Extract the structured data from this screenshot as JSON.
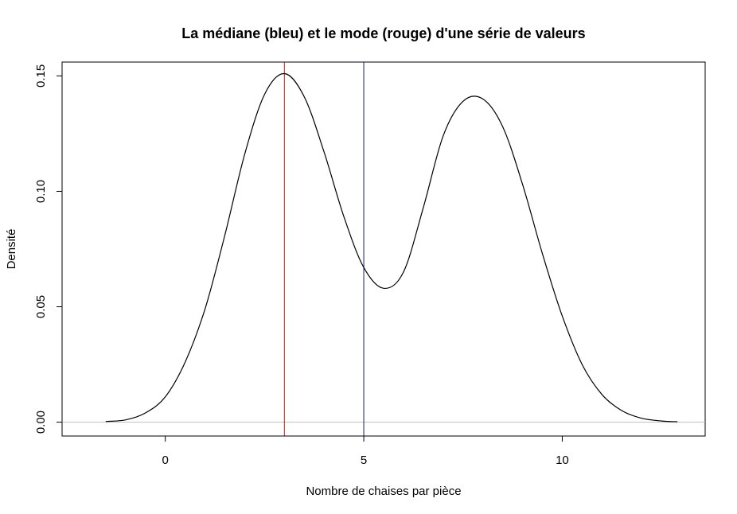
{
  "chart_data": {
    "type": "line",
    "title": "La médiane (bleu) et le mode (rouge) d'une série de valeurs",
    "xlabel": "Nombre de chaises par pièce",
    "ylabel": "Densité",
    "xlim": [
      -2.6,
      13.6
    ],
    "ylim": [
      -0.006,
      0.156
    ],
    "x_ticks": [
      0,
      5,
      10
    ],
    "x_tick_labels": [
      "0",
      "5",
      "10"
    ],
    "y_ticks": [
      0.0,
      0.05,
      0.1,
      0.15
    ],
    "y_tick_labels": [
      "0.00",
      "0.05",
      "0.10",
      "0.15"
    ],
    "grid": false,
    "series": [
      {
        "color": "#000000",
        "x": [
          -1.5,
          -1.0,
          -0.5,
          0.0,
          0.5,
          1.0,
          1.5,
          2.0,
          2.5,
          3.0,
          3.5,
          4.0,
          4.5,
          5.0,
          5.5,
          6.0,
          6.5,
          7.0,
          7.5,
          8.0,
          8.5,
          9.0,
          9.5,
          10.0,
          10.5,
          11.0,
          11.5,
          12.0,
          12.5,
          12.9
        ],
        "y": [
          0.0003,
          0.001,
          0.004,
          0.011,
          0.026,
          0.049,
          0.081,
          0.116,
          0.142,
          0.151,
          0.141,
          0.117,
          0.089,
          0.067,
          0.058,
          0.065,
          0.093,
          0.124,
          0.139,
          0.14,
          0.128,
          0.103,
          0.073,
          0.046,
          0.025,
          0.012,
          0.005,
          0.0017,
          0.0005,
          0.0002
        ]
      }
    ],
    "reference_lines": [
      {
        "orientation": "horizontal",
        "y": 0,
        "color": "#bebebe"
      },
      {
        "orientation": "vertical",
        "x": 3,
        "color": "#b22222"
      },
      {
        "orientation": "vertical",
        "x": 5,
        "color": "#191970"
      }
    ]
  }
}
